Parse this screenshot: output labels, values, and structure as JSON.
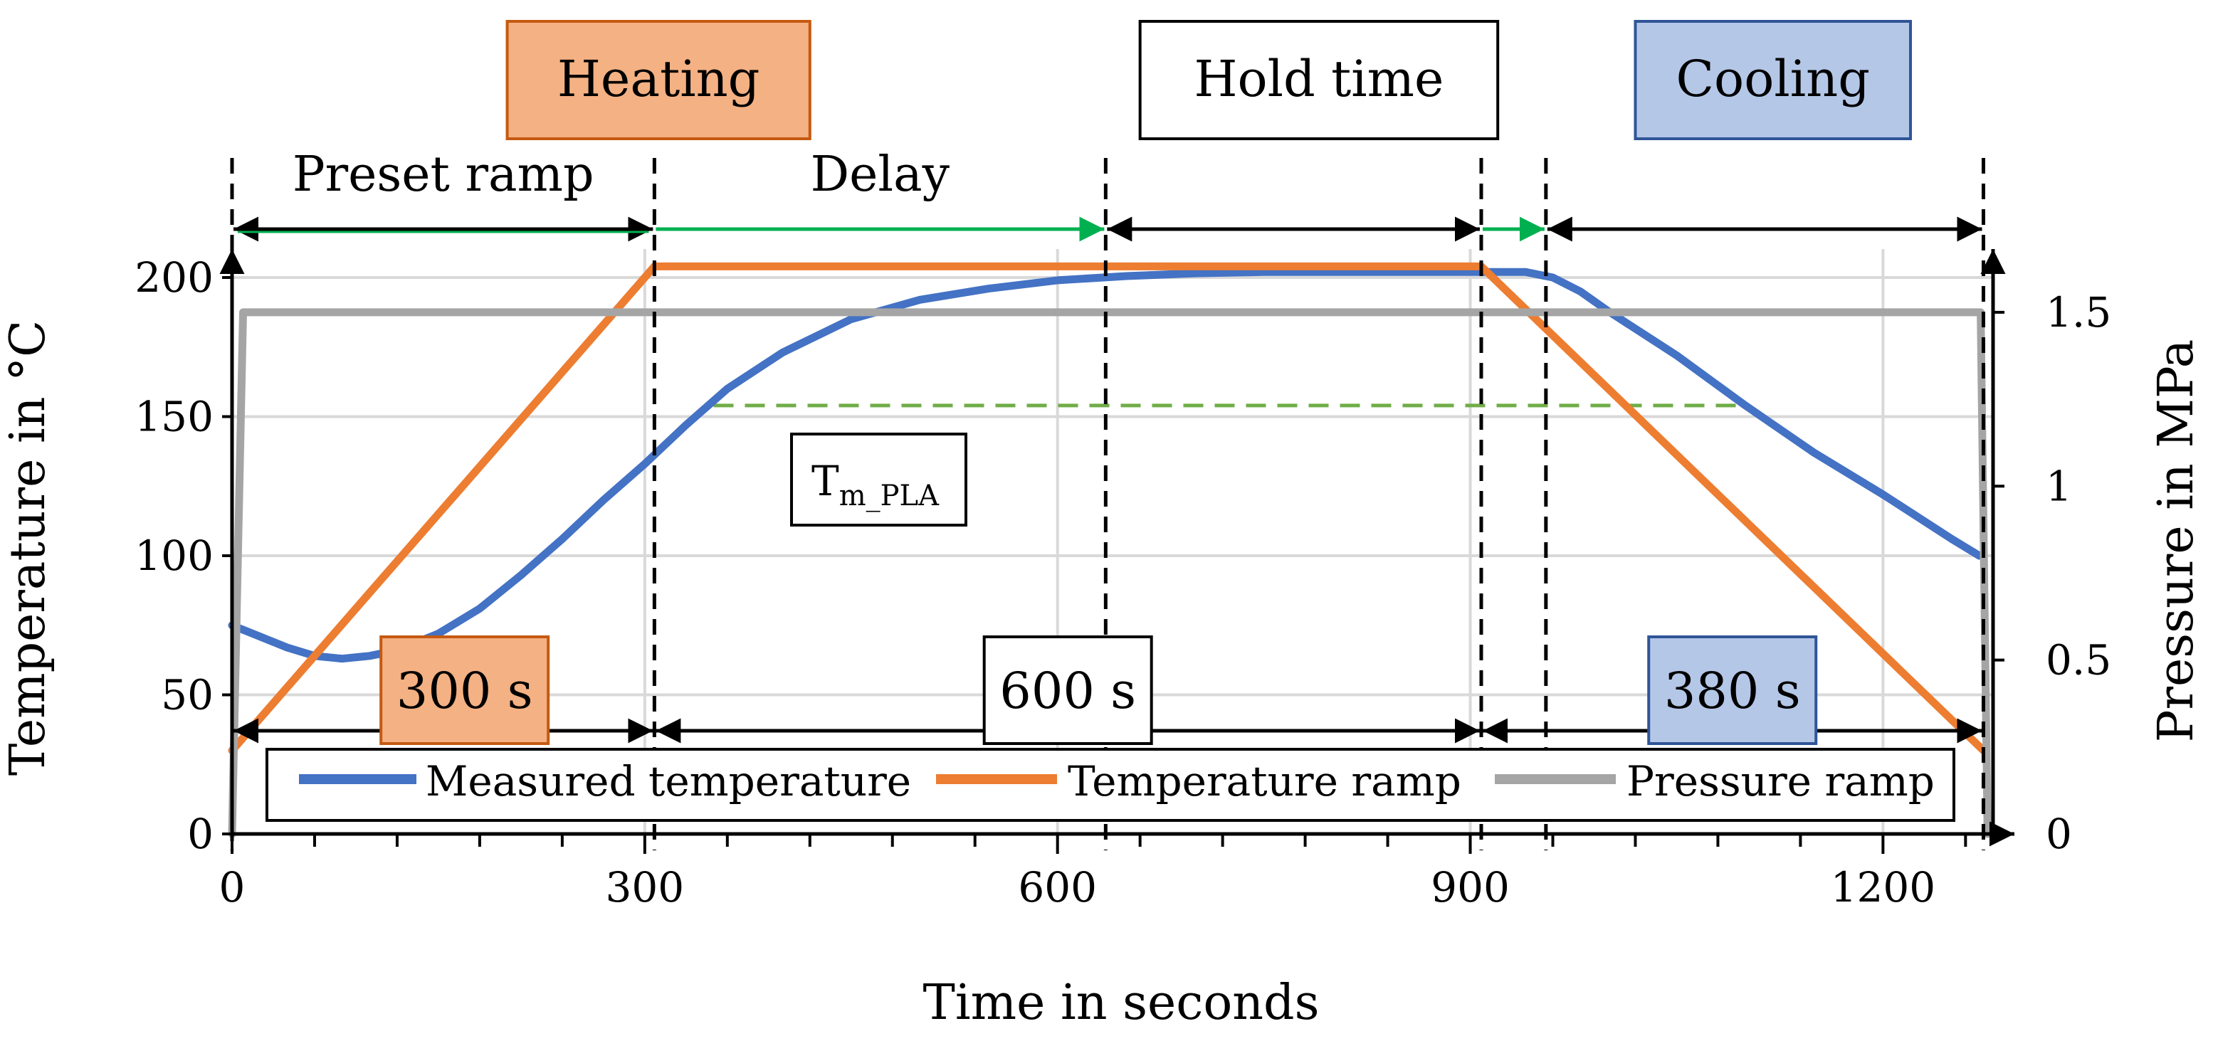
{
  "chart_data": {
    "type": "line",
    "xlabel": "Time in seconds",
    "ylabel": "Temperature in °C",
    "y2label": "Pressure in MPa",
    "xlim": [
      0,
      1280
    ],
    "ylim": [
      0,
      200
    ],
    "y2lim": [
      0,
      1.6
    ],
    "xticks": [
      0,
      300,
      600,
      900,
      1200
    ],
    "xtick_labels": [
      "0",
      "300",
      "600",
      "900",
      "1200"
    ],
    "yticks": [
      0,
      50,
      100,
      150,
      200
    ],
    "ytick_labels": [
      "0",
      "50",
      "100",
      "150",
      "200"
    ],
    "y2ticks": [
      0,
      0.5,
      1,
      1.5
    ],
    "y2tick_labels": [
      "0",
      "0.5",
      "1",
      "1.5"
    ],
    "x_minor_step": 60,
    "grid": true,
    "legend_position": "bottom",
    "series": [
      {
        "name": "Measured temperature",
        "color": "#4472C4",
        "axis": "left",
        "x": [
          0,
          20,
          40,
          60,
          80,
          100,
          120,
          150,
          180,
          210,
          240,
          270,
          300,
          330,
          360,
          400,
          450,
          500,
          550,
          600,
          650,
          700,
          750,
          800,
          850,
          900,
          920,
          940,
          960,
          980,
          1000,
          1050,
          1100,
          1150,
          1200,
          1250,
          1270
        ],
        "values": [
          75,
          71,
          67,
          64,
          63,
          64,
          66,
          72,
          81,
          93,
          106,
          120,
          133,
          147,
          160,
          173,
          185,
          192,
          196,
          199,
          200.5,
          201.5,
          202,
          202,
          202,
          202,
          202,
          202,
          200,
          195,
          188,
          172,
          154,
          137,
          122,
          106,
          100
        ]
      },
      {
        "name": "Temperature ramp",
        "color": "#ED7D31",
        "axis": "left",
        "x": [
          0,
          307,
          908,
          1273
        ],
        "values": [
          30,
          204,
          204,
          30
        ]
      },
      {
        "name": "Pressure ramp",
        "color": "#A5A5A5",
        "axis": "right",
        "x": [
          0,
          8,
          1271,
          1276
        ],
        "values": [
          0,
          1.5,
          1.5,
          0
        ]
      }
    ],
    "reference_line": {
      "name": "Tm_PLA",
      "label_main": "T",
      "label_sub": "m_PLA",
      "y": 154,
      "x_range": [
        350,
        1100
      ],
      "color": "#70AD47"
    },
    "phase_boxes": [
      {
        "label": "Heating",
        "x_range": [
          200,
          420
        ],
        "fill": "#F4B183",
        "stroke": "#C55A11"
      },
      {
        "label": "Hold time",
        "x_range": [
          660,
          920
        ],
        "fill": "#FFFFFF",
        "stroke": "#000000"
      },
      {
        "label": "Cooling",
        "x_range": [
          1020,
          1220
        ],
        "fill": "#B4C7E7",
        "stroke": "#2F5597"
      }
    ],
    "annotations": {
      "dashed_markers_x": [
        0,
        307,
        635,
        908,
        955,
        1273
      ],
      "top_arrows": [
        {
          "x_range": [
            0,
            307
          ],
          "label": "Preset ramp",
          "color": "#000000"
        },
        {
          "x_range": [
            307,
            635
          ],
          "label": "Delay",
          "color": "#00B050"
        },
        {
          "x_range": [
            635,
            908
          ],
          "label": "",
          "color": "#000000"
        },
        {
          "x_range": [
            908,
            955
          ],
          "label": "",
          "color": "#00B050"
        },
        {
          "x_range": [
            955,
            1273
          ],
          "label": "",
          "color": "#000000"
        }
      ],
      "duration_arrows": [
        {
          "x_range": [
            0,
            307
          ],
          "label": "300 s",
          "fill": "#F4B183",
          "stroke": "#C55A11"
        },
        {
          "x_range": [
            307,
            908
          ],
          "label": "600 s",
          "fill": "#FFFFFF",
          "stroke": "#000000"
        },
        {
          "x_range": [
            908,
            1273
          ],
          "label": "380 s",
          "fill": "#B4C7E7",
          "stroke": "#2F5597"
        }
      ]
    }
  }
}
